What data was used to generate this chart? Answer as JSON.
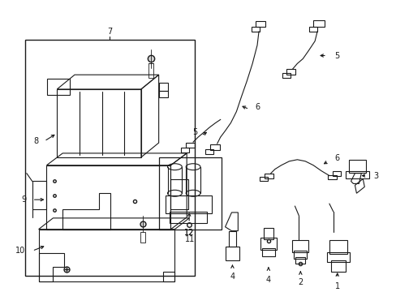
{
  "background_color": "#ffffff",
  "line_color": "#1a1a1a",
  "fig_width": 4.89,
  "fig_height": 3.6,
  "dpi": 100,
  "font_size": 7.0,
  "font_size_small": 6.5
}
